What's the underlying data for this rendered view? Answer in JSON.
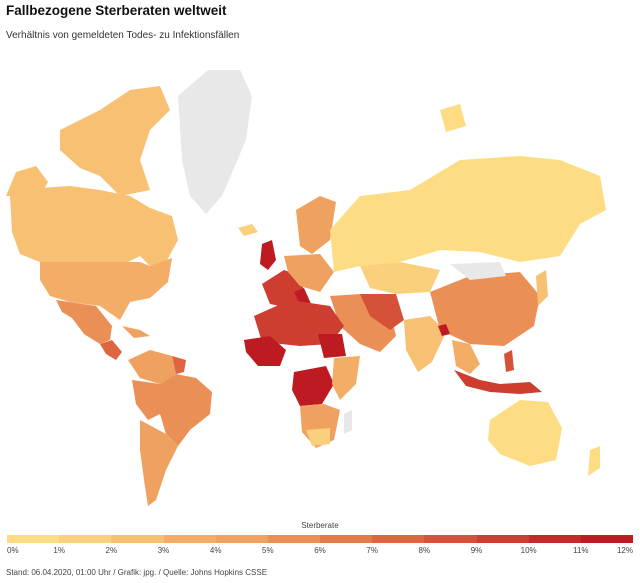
{
  "header": {
    "title": "Fallbezogene Sterberaten weltweit",
    "subtitle": "Verhältnis von gemeldeten Todes- zu Infektionsfällen"
  },
  "legend": {
    "title": "Sterberate",
    "ticks": [
      "0%",
      "1%",
      "2%",
      "3%",
      "4%",
      "5%",
      "6%",
      "7%",
      "8%",
      "9%",
      "10%",
      "11%",
      "12%"
    ],
    "colors": [
      "#fddc84",
      "#fbd07c",
      "#f8c072",
      "#f4ad66",
      "#efa15f",
      "#ea8f55",
      "#e47b4b",
      "#dd6641",
      "#d55238",
      "#cd3e30",
      "#c52a29",
      "#bd1a22"
    ],
    "no_data_color": "#e8e8e8"
  },
  "footer": {
    "text": "Stand: 06.04.2020, 01:00 Uhr / Grafik: jpg. / Quelle: Johns Hopkins CSSE"
  }
}
